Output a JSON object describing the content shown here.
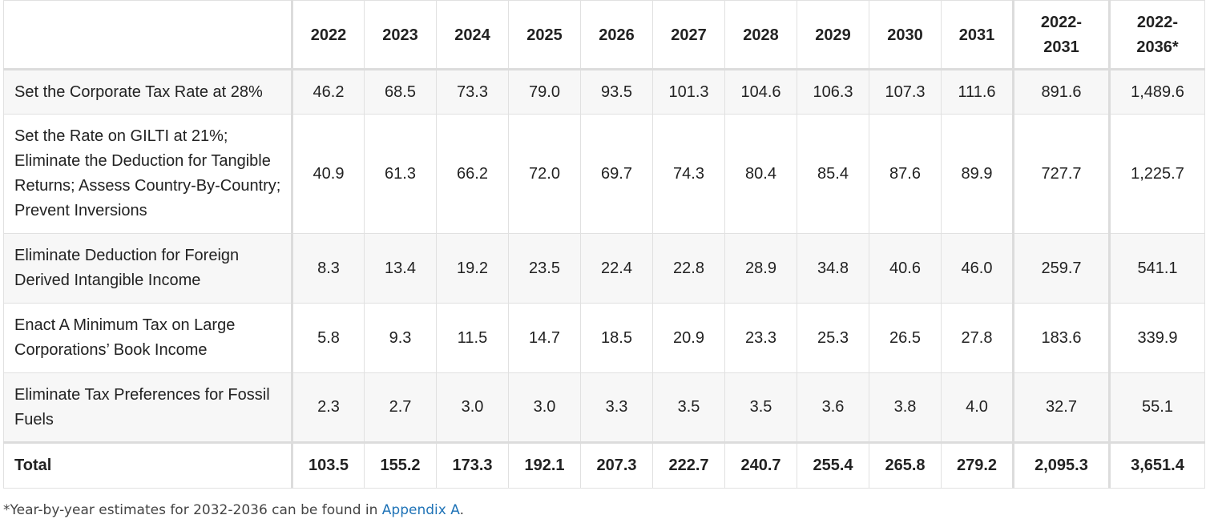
{
  "table": {
    "columns": [
      "",
      "2022",
      "2023",
      "2024",
      "2025",
      "2026",
      "2027",
      "2028",
      "2029",
      "2030",
      "2031",
      "2022-\n2031",
      "2022-\n2036*"
    ],
    "rows": [
      {
        "label": "Set the Corporate Tax Rate at 28%",
        "values": [
          "46.2",
          "68.5",
          "73.3",
          "79.0",
          "93.5",
          "101.3",
          "104.6",
          "106.3",
          "107.3",
          "111.6",
          "891.6",
          "1,489.6"
        ]
      },
      {
        "label": "Set the Rate on GILTI at 21%; Eliminate the Deduction for Tangible Returns; Assess Country-By-Country; Prevent Inversions",
        "values": [
          "40.9",
          "61.3",
          "66.2",
          "72.0",
          "69.7",
          "74.3",
          "80.4",
          "85.4",
          "87.6",
          "89.9",
          "727.7",
          "1,225.7"
        ]
      },
      {
        "label": "Eliminate Deduction for Foreign Derived Intangible Income",
        "values": [
          "8.3",
          "13.4",
          "19.2",
          "23.5",
          "22.4",
          "22.8",
          "28.9",
          "34.8",
          "40.6",
          "46.0",
          "259.7",
          "541.1"
        ]
      },
      {
        "label": "Enact A Minimum Tax on Large Corporations’ Book Income",
        "values": [
          "5.8",
          "9.3",
          "11.5",
          "14.7",
          "18.5",
          "20.9",
          "23.3",
          "25.3",
          "26.5",
          "27.8",
          "183.6",
          "339.9"
        ]
      },
      {
        "label": "Eliminate Tax Preferences for Fossil Fuels",
        "values": [
          "2.3",
          "2.7",
          "3.0",
          "3.0",
          "3.3",
          "3.5",
          "3.5",
          "3.6",
          "3.8",
          "4.0",
          "32.7",
          "55.1"
        ]
      }
    ],
    "total": {
      "label": "Total",
      "values": [
        "103.5",
        "155.2",
        "173.3",
        "192.1",
        "207.3",
        "222.7",
        "240.7",
        "255.4",
        "265.8",
        "279.2",
        "2,095.3",
        "3,651.4"
      ]
    }
  },
  "footnote": {
    "text": "*Year-by-year estimates for 2032-2036 can be found in ",
    "link": "Appendix A",
    "end": "."
  }
}
